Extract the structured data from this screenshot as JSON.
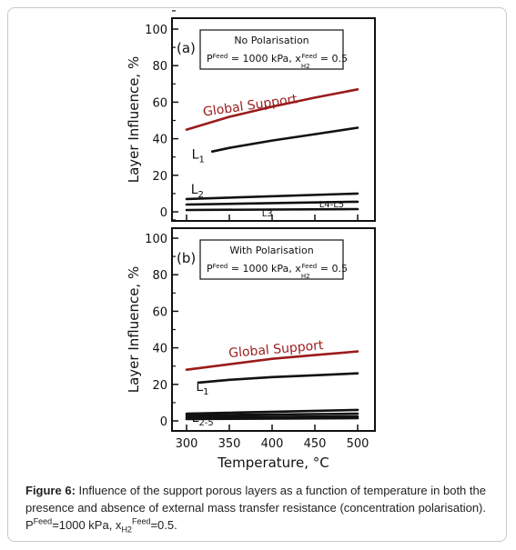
{
  "chart_data": [
    {
      "panel": "(a)",
      "type": "line",
      "box_text": [
        "No Polarisation",
        "P",
        "Feed",
        " = 1000 kPa, x",
        "H2",
        "Feed",
        " = 0.5"
      ],
      "ylabel": "Layer Influence, %",
      "ylim": [
        0,
        100
      ],
      "yticks": [
        0,
        20,
        40,
        60,
        80,
        100
      ],
      "xlim": [
        300,
        500
      ],
      "series": [
        {
          "name": "Global Support",
          "color": "#9b1b1b",
          "x": [
            300,
            350,
            400,
            450,
            500
          ],
          "y": [
            45,
            52,
            57.5,
            62.5,
            67
          ]
        },
        {
          "name": "L1",
          "color": "#111111",
          "x": [
            330,
            350,
            400,
            450,
            500
          ],
          "y": [
            33,
            35,
            39,
            42.5,
            46
          ]
        },
        {
          "name": "L2",
          "color": "#111111",
          "x": [
            300,
            500
          ],
          "y": [
            7,
            10
          ]
        },
        {
          "name": "L4-L5",
          "color": "#111111",
          "x": [
            300,
            500
          ],
          "y": [
            4,
            5.5
          ]
        },
        {
          "name": "L3",
          "color": "#111111",
          "x": [
            300,
            500
          ],
          "y": [
            1,
            1.5
          ]
        }
      ],
      "labels": [
        {
          "text": "Global Support",
          "x": 375,
          "y": 56,
          "color": "#9b1b1b",
          "rotate": -8
        },
        {
          "text": "L",
          "sub": "1",
          "x": 306,
          "y": 29
        },
        {
          "text": "L",
          "sub": "2",
          "x": 305,
          "y": 10
        },
        {
          "text": "L4-L5",
          "x": 455,
          "y": 2.5,
          "small": true
        },
        {
          "text": "L3",
          "x": 388,
          "y": -2.5,
          "small": true
        }
      ]
    },
    {
      "panel": "(b)",
      "type": "line",
      "box_text": [
        "With Polarisation",
        "P",
        "Feed",
        " = 1000 kPa, x",
        "H2",
        "Feed",
        " = 0.5"
      ],
      "ylabel": "Layer Influence, %",
      "xlabel": "Temperature, °C",
      "ylim": [
        0,
        100
      ],
      "yticks": [
        0,
        20,
        40,
        60,
        80,
        100
      ],
      "xlim": [
        300,
        500
      ],
      "xticks": [
        300,
        350,
        400,
        450,
        500
      ],
      "series": [
        {
          "name": "Global Support",
          "color": "#9b1b1b",
          "x": [
            300,
            350,
            400,
            450,
            500
          ],
          "y": [
            28,
            31,
            34,
            36,
            38
          ]
        },
        {
          "name": "L1",
          "color": "#111111",
          "x": [
            315,
            350,
            400,
            450,
            500
          ],
          "y": [
            21,
            22.5,
            24,
            25,
            26
          ]
        },
        {
          "name": "L2",
          "color": "#111111",
          "x": [
            300,
            500
          ],
          "y": [
            4,
            6
          ]
        },
        {
          "name": "L3",
          "color": "#111111",
          "x": [
            300,
            500
          ],
          "y": [
            3,
            4
          ]
        },
        {
          "name": "L4",
          "color": "#111111",
          "x": [
            300,
            500
          ],
          "y": [
            2,
            2.5
          ]
        },
        {
          "name": "L5",
          "color": "#111111",
          "x": [
            300,
            500
          ],
          "y": [
            1,
            1.5
          ]
        }
      ],
      "labels": [
        {
          "text": "Global Support",
          "x": 405,
          "y": 37,
          "color": "#9b1b1b",
          "rotate": -5
        },
        {
          "text": "L",
          "sub": "1",
          "x": 311,
          "y": 16.5
        },
        {
          "text": "L",
          "sub": "2-5",
          "x": 306,
          "y": -0.5
        }
      ]
    }
  ],
  "caption": {
    "label": "Figure 6:",
    "text": " Influence of the support porous layers as a function of temperature in both the presence and absence of external mass transfer resistance (concentration polarisation). P",
    "sup1": "Feed",
    "text2": "=1000 kPa, x",
    "sub1": "H2",
    "sup2": "Feed",
    "text3": "=0.5."
  }
}
